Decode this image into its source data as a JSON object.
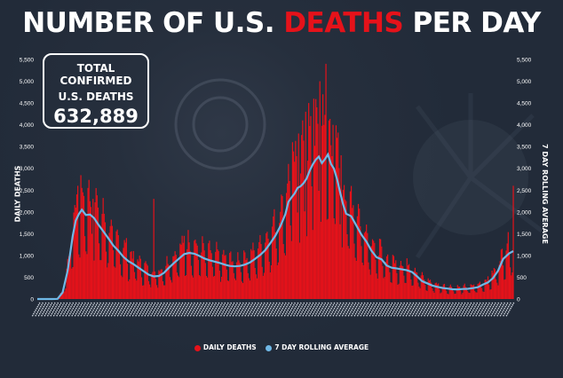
{
  "header": {
    "title_part1": "NUMBER OF U.S.",
    "title_part2": "DEATHS",
    "title_part3": "PER DAY"
  },
  "total_box": {
    "line1": "TOTAL CONFIRMED",
    "line2": "U.S. DEATHS",
    "value": "632,889"
  },
  "colors": {
    "bars": "#e5121a",
    "line": "#6fb8e6",
    "background": "#232c3a",
    "text": "#ffffff"
  },
  "chart_data": {
    "type": "bar",
    "title": "NUMBER OF U.S. DEATHS PER DAY",
    "ylabel": "DAILY DEATHS",
    "y2label": "7 DAY ROLLING AVERAGE",
    "ylim": [
      0,
      5500
    ],
    "yticks": [
      "0",
      "500",
      "1,000",
      "1,500",
      "2,000",
      "2,500",
      "3,000",
      "3,500",
      "4,000",
      "4,500",
      "5,000",
      "5,500"
    ],
    "legend": [
      "DAILY DEATHS",
      "7 DAY ROLLING AVERAGE"
    ],
    "legend_position": "bottom",
    "x_range": [
      "2020-02-29",
      "2021-08-24"
    ],
    "x_tick_labels": "dense rotated daily date labels (illegible)",
    "series": [
      {
        "name": "7 DAY ROLLING AVERAGE",
        "values": [
          [
            0,
            0
          ],
          [
            5,
            0
          ],
          [
            10,
            0
          ],
          [
            15,
            0
          ],
          [
            20,
            5
          ],
          [
            25,
            150
          ],
          [
            30,
            650
          ],
          [
            35,
            1450
          ],
          [
            38,
            1800
          ],
          [
            41,
            1950
          ],
          [
            44,
            2050
          ],
          [
            48,
            1930
          ],
          [
            52,
            1940
          ],
          [
            56,
            1860
          ],
          [
            60,
            1720
          ],
          [
            65,
            1560
          ],
          [
            70,
            1400
          ],
          [
            75,
            1230
          ],
          [
            80,
            1110
          ],
          [
            85,
            970
          ],
          [
            90,
            870
          ],
          [
            95,
            800
          ],
          [
            100,
            720
          ],
          [
            105,
            640
          ],
          [
            110,
            560
          ],
          [
            115,
            520
          ],
          [
            120,
            530
          ],
          [
            125,
            600
          ],
          [
            130,
            720
          ],
          [
            135,
            830
          ],
          [
            140,
            930
          ],
          [
            145,
            1030
          ],
          [
            150,
            1060
          ],
          [
            155,
            1040
          ],
          [
            160,
            990
          ],
          [
            165,
            930
          ],
          [
            170,
            890
          ],
          [
            175,
            860
          ],
          [
            180,
            830
          ],
          [
            185,
            790
          ],
          [
            190,
            760
          ],
          [
            195,
            750
          ],
          [
            200,
            760
          ],
          [
            205,
            790
          ],
          [
            210,
            840
          ],
          [
            215,
            920
          ],
          [
            220,
            1010
          ],
          [
            225,
            1120
          ],
          [
            230,
            1280
          ],
          [
            235,
            1450
          ],
          [
            240,
            1670
          ],
          [
            245,
            1950
          ],
          [
            248,
            2230
          ],
          [
            251,
            2330
          ],
          [
            254,
            2420
          ],
          [
            257,
            2550
          ],
          [
            260,
            2590
          ],
          [
            263,
            2660
          ],
          [
            266,
            2770
          ],
          [
            269,
            2950
          ],
          [
            272,
            3090
          ],
          [
            275,
            3200
          ],
          [
            278,
            3270
          ],
          [
            281,
            3120
          ],
          [
            284,
            3210
          ],
          [
            287,
            3320
          ],
          [
            290,
            3100
          ],
          [
            293,
            2990
          ],
          [
            296,
            2750
          ],
          [
            299,
            2450
          ],
          [
            302,
            2170
          ],
          [
            305,
            1960
          ],
          [
            310,
            1900
          ],
          [
            315,
            1690
          ],
          [
            320,
            1480
          ],
          [
            325,
            1320
          ],
          [
            330,
            1110
          ],
          [
            335,
            960
          ],
          [
            340,
            910
          ],
          [
            345,
            770
          ],
          [
            350,
            720
          ],
          [
            355,
            700
          ],
          [
            360,
            680
          ],
          [
            365,
            660
          ],
          [
            370,
            620
          ],
          [
            375,
            520
          ],
          [
            380,
            410
          ],
          [
            385,
            360
          ],
          [
            390,
            310
          ],
          [
            395,
            280
          ],
          [
            400,
            255
          ],
          [
            405,
            240
          ],
          [
            410,
            225
          ],
          [
            415,
            220
          ],
          [
            420,
            230
          ],
          [
            425,
            235
          ],
          [
            430,
            250
          ],
          [
            435,
            270
          ],
          [
            440,
            330
          ],
          [
            445,
            380
          ],
          [
            450,
            480
          ],
          [
            455,
            650
          ],
          [
            460,
            920
          ],
          [
            466,
            1050
          ],
          [
            470,
            1100
          ]
        ]
      },
      {
        "name": "DAILY DEATHS",
        "peaks": [
          [
            40,
            2600
          ],
          [
            45,
            2450
          ],
          [
            50,
            2550
          ],
          [
            55,
            2300
          ],
          [
            60,
            2100
          ],
          [
            88,
            1400
          ],
          [
            115,
            2300
          ],
          [
            145,
            1450
          ],
          [
            150,
            1300
          ],
          [
            252,
            3600
          ],
          [
            258,
            3800
          ],
          [
            262,
            4100
          ],
          [
            265,
            4300
          ],
          [
            268,
            4500
          ],
          [
            270,
            4200
          ],
          [
            273,
            4600
          ],
          [
            276,
            4400
          ],
          [
            279,
            5000
          ],
          [
            282,
            4700
          ],
          [
            285,
            5400
          ],
          [
            288,
            4100
          ],
          [
            292,
            4000
          ],
          [
            296,
            3700
          ],
          [
            300,
            3300
          ],
          [
            470,
            2600
          ]
        ]
      }
    ]
  }
}
